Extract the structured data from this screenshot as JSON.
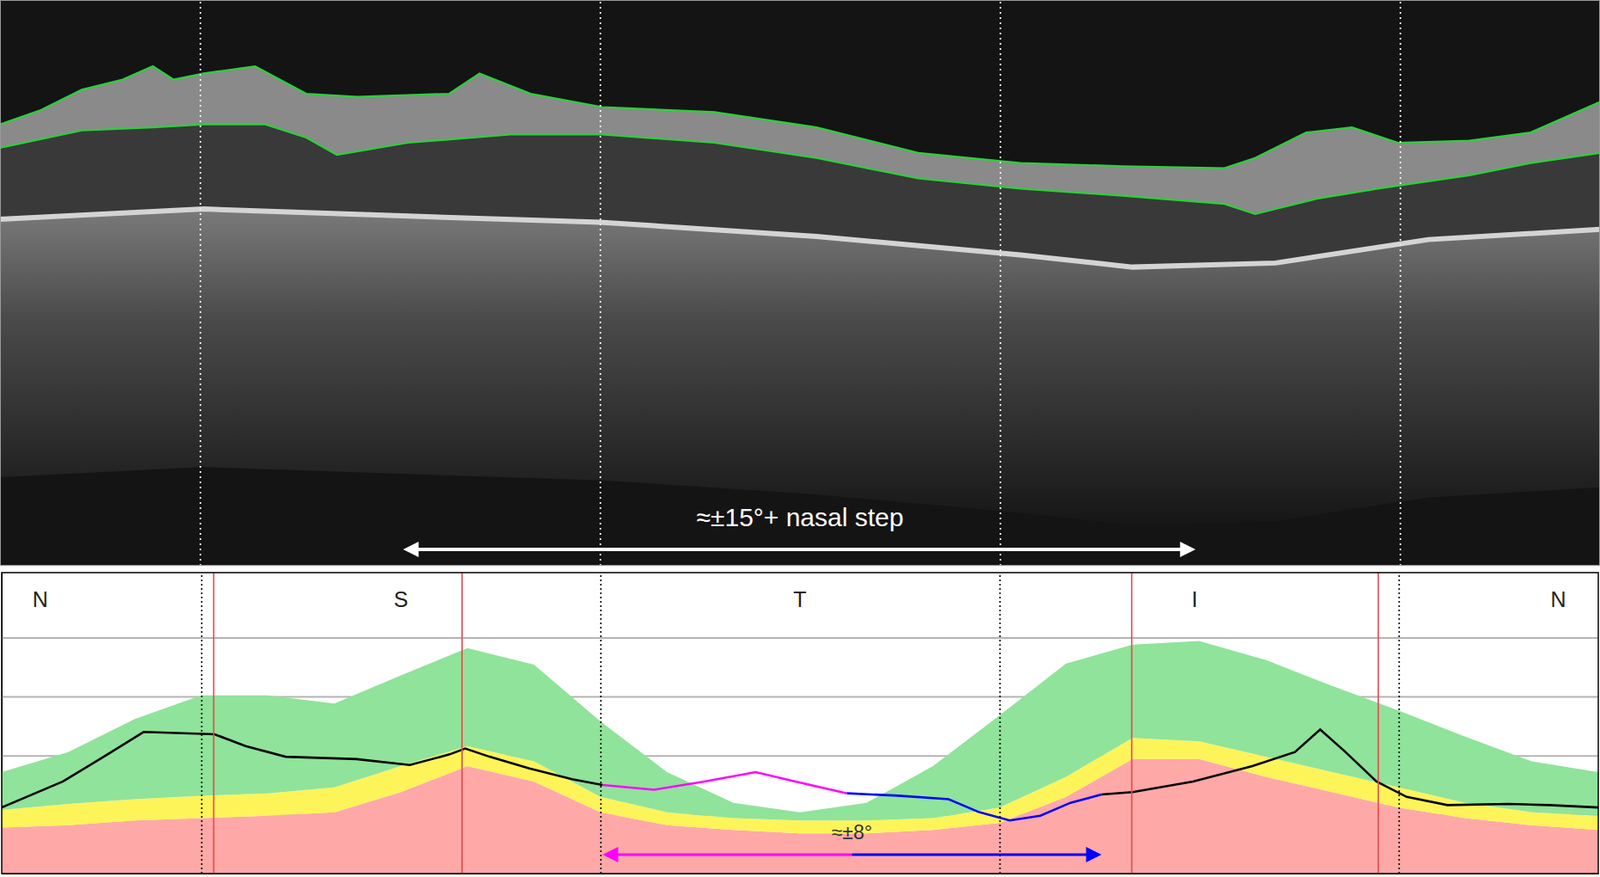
{
  "chart_data": [
    {
      "type": "line",
      "xlim": [
        0,
        360
      ],
      "ylim": [
        555,
        0
      ],
      "xticks": [
        45,
        135,
        225,
        315
      ],
      "tick_labels": false,
      "grid": true,
      "series": [
        {
          "color": "#2bd13b",
          "x": [
            0,
            9.2,
            18.4,
            27.6,
            34.4,
            39,
            45.9,
            57.4,
            68.9,
            80.4,
            101,
            107.9,
            119.4,
            135.5,
            160.7,
            183.7,
            206.6,
            229.6,
            252.5,
            275.5,
            282.4,
            293.9,
            304.2,
            314.5,
            330.6,
            344.4,
            360
          ],
          "values": [
            122,
            108,
            88,
            78,
            65,
            78,
            72,
            65,
            92,
            95,
            92,
            72,
            92,
            105,
            110,
            125,
            150,
            160,
            163,
            165,
            155,
            130,
            125,
            140,
            138,
            130,
            100
          ]
        },
        {
          "color": "#2bd13b",
          "x": [
            0,
            18.4,
            34.4,
            45.9,
            59.7,
            68.9,
            75.8,
            91.8,
            114.8,
            135.5,
            160.7,
            183.7,
            206.6,
            229.6,
            252.5,
            275.5,
            282.4,
            296.2,
            310,
            330.6,
            344.4,
            360
          ],
          "values": [
            145,
            128,
            125,
            122,
            122,
            135,
            152,
            140,
            132,
            132,
            140,
            155,
            175,
            185,
            192,
            200,
            210,
            195,
            185,
            172,
            160,
            150
          ]
        },
        {
          "color": "#d4d4d4",
          "x": [
            0,
            45.9,
            91.8,
            135,
            183.7,
            229.6,
            254.8,
            287,
            321.4,
            360
          ],
          "values": [
            215,
            205,
            212,
            218,
            232,
            250,
            262,
            258,
            235,
            225
          ]
        }
      ],
      "annotations": [
        {
          "text": "≈±15°+ nasal step",
          "x": 180
        }
      ],
      "arrows": [
        {
          "from": 90.7,
          "to": 269,
          "color": "#ffffff"
        }
      ]
    },
    {
      "type": "area",
      "stacked": true,
      "grid": true,
      "tick_labels": false,
      "xlim": [
        0,
        360
      ],
      "ylim": [
        0,
        255
      ],
      "xticks": [
        45,
        135,
        225,
        315
      ],
      "yticks": [
        50,
        100,
        150,
        200
      ],
      "x": [
        0,
        15,
        30,
        45,
        60,
        75,
        90,
        105,
        120,
        135,
        150,
        165,
        180,
        195,
        210,
        225,
        240,
        255,
        270,
        285,
        300,
        315,
        330,
        345,
        360
      ],
      "series": [
        {
          "type": "area",
          "color": "#ffa8a8",
          "values": [
            39,
            41,
            45,
            47,
            49,
            52,
            69,
            91,
            78,
            52,
            41,
            37,
            34,
            34,
            37,
            43,
            65,
            97,
            97,
            82,
            69,
            56,
            47,
            41,
            37
          ]
        },
        {
          "type": "area",
          "color": "#fdf45a",
          "values": [
            15,
            18,
            18,
            19,
            19,
            21,
            22,
            17,
            17,
            13,
            11,
            10,
            11,
            11,
            10,
            13,
            17,
            18,
            15,
            17,
            17,
            17,
            13,
            11,
            12
          ]
        },
        {
          "type": "area",
          "color": "#90e39a",
          "values": [
            32,
            44,
            68,
            85,
            83,
            71,
            77,
            83,
            82,
            64,
            34,
            13,
            7,
            15,
            44,
            78,
            96,
            79,
            85,
            82,
            73,
            65,
            56,
            43,
            37
          ]
        },
        {
          "type": "line",
          "color": "#000000",
          "x": [
            0,
            13.8,
            23,
            32,
            48,
            55,
            64,
            80,
            92,
            101,
            104.5,
            110,
            119,
            128.6,
            135.5,
            192,
            248,
            255,
            268.6,
            282,
            291.6,
            297.3,
            303,
            310,
            316.8,
            326,
            339.8,
            349,
            360
          ],
          "values": [
            56,
            78,
            99,
            120,
            118,
            108,
            99,
            97,
            92,
            101,
            106,
            99,
            89,
            80,
            75,
            null,
            67,
            69,
            78,
            91,
            103,
            122,
            103,
            78,
            65,
            58,
            59,
            58,
            56
          ]
        },
        {
          "type": "line",
          "color": "#ff00ff",
          "x": [
            135.5,
            147,
            158.4,
            170,
            179,
            190.6
          ],
          "values": [
            75,
            71,
            78,
            86,
            78,
            68
          ]
        },
        {
          "type": "line",
          "color": "#0000ff",
          "x": [
            190.6,
            202,
            213.5,
            220.4,
            227.3,
            234.2,
            241,
            248
          ],
          "values": [
            68,
            66,
            63,
            52,
            45,
            49,
            60,
            67
          ]
        }
      ],
      "sectors": [
        {
          "label": "N",
          "x": 8.7
        },
        {
          "label": "S",
          "x": 90
        },
        {
          "label": "T",
          "x": 180
        },
        {
          "label": "I",
          "x": 269
        },
        {
          "label": "N",
          "x": 351
        }
      ],
      "reference_lines": {
        "x": [
          47.8,
          103.8,
          254.8,
          310.4
        ],
        "color": "#e8474c"
      },
      "annotations": [
        {
          "text": "≈±8°",
          "x": 191.7
        }
      ],
      "arrows": [
        {
          "from": 135.5,
          "to": 191.7,
          "color": "#ff00ff"
        },
        {
          "from": 191.7,
          "to": 248,
          "color": "#0000ff"
        }
      ]
    }
  ]
}
